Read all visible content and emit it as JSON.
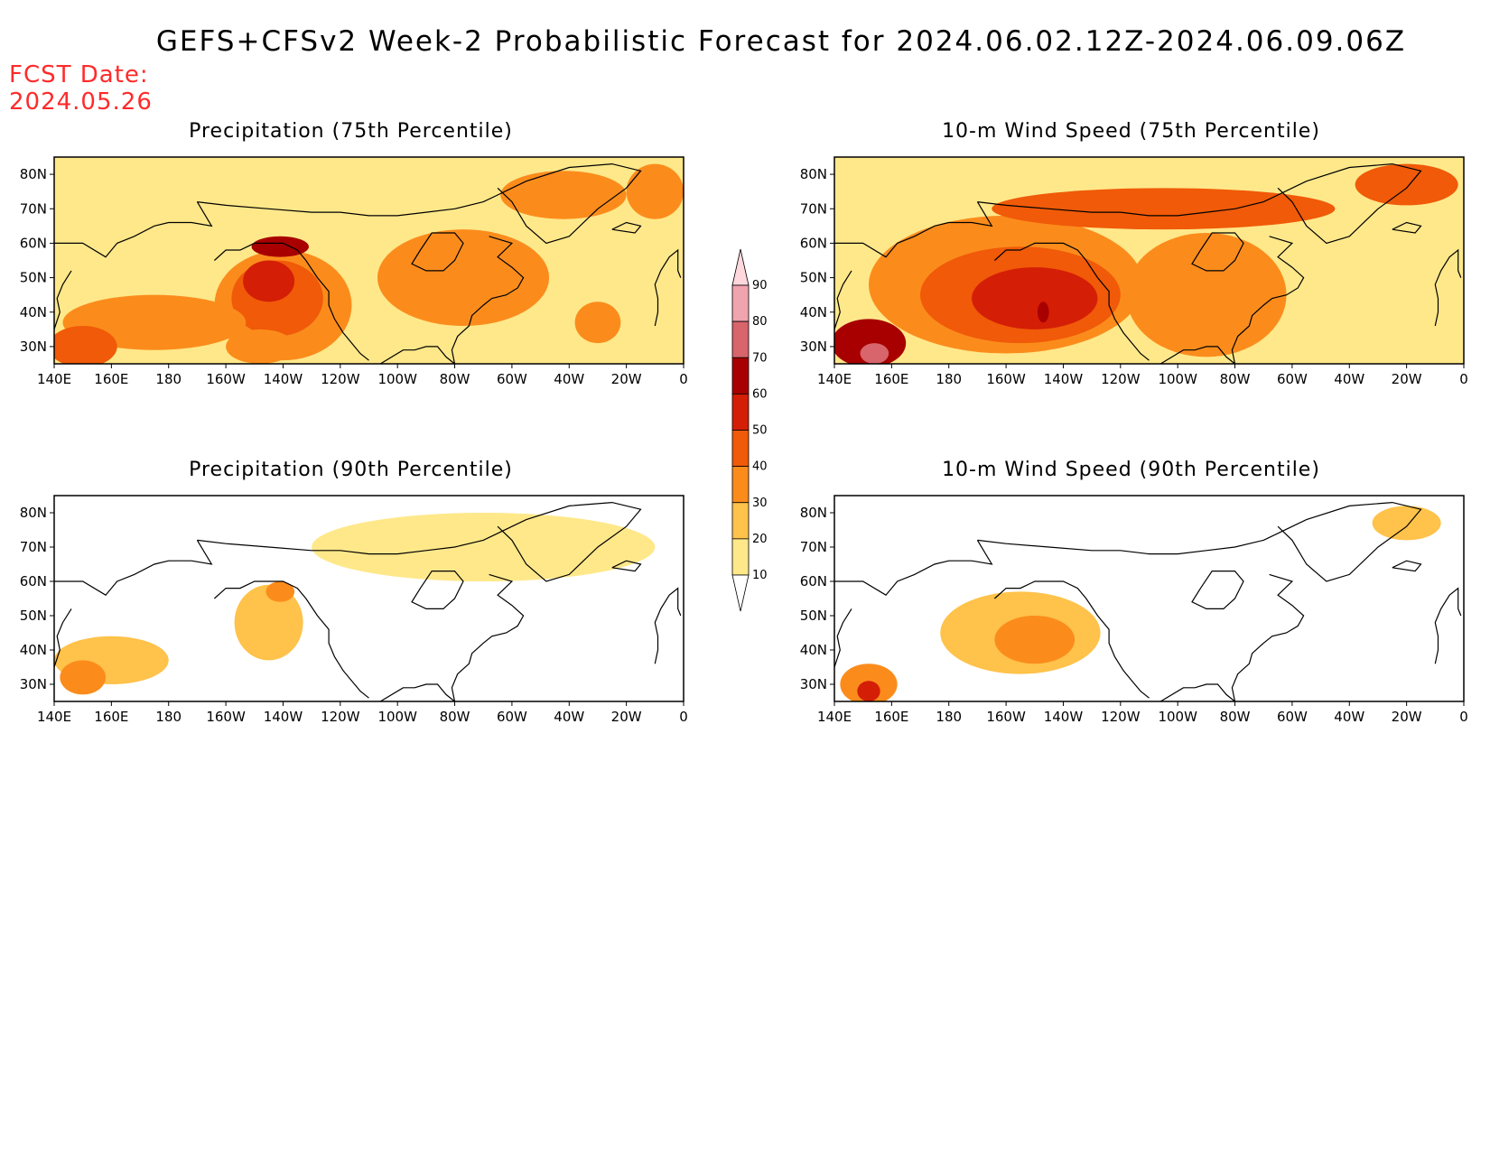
{
  "title": "GEFS+CFSv2 Week-2 Probabilistic Forecast for 2024.06.02.12Z-2024.06.09.06Z",
  "fcst_label": "FCST Date:",
  "fcst_date": "2024.05.26",
  "x_ticks": [
    "140E",
    "160E",
    "180",
    "160W",
    "140W",
    "120W",
    "100W",
    "80W",
    "60W",
    "40W",
    "20W",
    "0"
  ],
  "y_ticks": [
    "30N",
    "40N",
    "50N",
    "60N",
    "70N",
    "80N"
  ],
  "colorbar": {
    "levels": [
      10,
      20,
      30,
      40,
      50,
      60,
      70,
      80,
      90
    ],
    "labels": [
      "10",
      "20",
      "30",
      "40",
      "50",
      "60",
      "70",
      "80",
      "90"
    ],
    "colors": [
      "#fff8c2",
      "#ffe88a",
      "#ffc24a",
      "#fb8c1c",
      "#f05a08",
      "#d41e06",
      "#a80000",
      "#d8646c",
      "#f0a4ae",
      "#ffd8de"
    ]
  },
  "chart_data": [
    {
      "type": "heatmap",
      "title": "Precipitation (75th Percentile)",
      "x_range": [
        140,
        360
      ],
      "y_range": [
        25,
        85
      ],
      "x_ticks": [
        "140E",
        "160E",
        "180",
        "160W",
        "140W",
        "120W",
        "100W",
        "80W",
        "60W",
        "40W",
        "20W",
        "0"
      ],
      "y_ticks": [
        "30N",
        "40N",
        "50N",
        "60N",
        "70N",
        "80N"
      ],
      "regions": [
        {
          "lon": 220,
          "lat": 42,
          "rx": 24,
          "ry": 16,
          "value": 30
        },
        {
          "lon": 218,
          "lat": 44,
          "rx": 16,
          "ry": 11,
          "value": 40
        },
        {
          "lon": 215,
          "lat": 49,
          "rx": 9,
          "ry": 6,
          "value": 50
        },
        {
          "lon": 219,
          "lat": 59,
          "rx": 10,
          "ry": 3,
          "value": 60
        },
        {
          "lon": 175,
          "lat": 37,
          "rx": 32,
          "ry": 8,
          "value": 30
        },
        {
          "lon": 150,
          "lat": 30,
          "rx": 12,
          "ry": 6,
          "value": 40
        },
        {
          "lon": 283,
          "lat": 50,
          "rx": 30,
          "ry": 14,
          "value": 30
        },
        {
          "lon": 318,
          "lat": 74,
          "rx": 22,
          "ry": 7,
          "value": 30
        },
        {
          "lon": 350,
          "lat": 75,
          "rx": 10,
          "ry": 8,
          "value": 30
        },
        {
          "lon": 212,
          "lat": 30,
          "rx": 12,
          "ry": 5,
          "value": 30
        },
        {
          "lon": 330,
          "lat": 37,
          "rx": 8,
          "ry": 6,
          "value": 30
        }
      ]
    },
    {
      "type": "heatmap",
      "title": "10-m Wind Speed (75th Percentile)",
      "x_range": [
        140,
        360
      ],
      "y_range": [
        25,
        85
      ],
      "x_ticks": [
        "140E",
        "160E",
        "180",
        "160W",
        "140W",
        "120W",
        "100W",
        "80W",
        "60W",
        "40W",
        "20W",
        "0"
      ],
      "y_ticks": [
        "30N",
        "40N",
        "50N",
        "60N",
        "70N",
        "80N"
      ],
      "regions": [
        {
          "lon": 200,
          "lat": 48,
          "rx": 48,
          "ry": 20,
          "value": 30
        },
        {
          "lon": 205,
          "lat": 45,
          "rx": 35,
          "ry": 14,
          "value": 40
        },
        {
          "lon": 210,
          "lat": 44,
          "rx": 22,
          "ry": 9,
          "value": 50
        },
        {
          "lon": 213,
          "lat": 40,
          "rx": 2,
          "ry": 3,
          "value": 60
        },
        {
          "lon": 152,
          "lat": 31,
          "rx": 13,
          "ry": 7,
          "value": 60
        },
        {
          "lon": 154,
          "lat": 28,
          "rx": 5,
          "ry": 3,
          "value": 70
        },
        {
          "lon": 255,
          "lat": 70,
          "rx": 60,
          "ry": 6,
          "value": 40
        },
        {
          "lon": 340,
          "lat": 77,
          "rx": 18,
          "ry": 6,
          "value": 40
        },
        {
          "lon": 270,
          "lat": 45,
          "rx": 28,
          "ry": 18,
          "value": 30
        }
      ]
    },
    {
      "type": "heatmap",
      "title": "Precipitation (90th Percentile)",
      "x_range": [
        140,
        360
      ],
      "y_range": [
        25,
        85
      ],
      "x_ticks": [
        "140E",
        "160E",
        "180",
        "160W",
        "140W",
        "120W",
        "100W",
        "80W",
        "60W",
        "40W",
        "20W",
        "0"
      ],
      "y_ticks": [
        "30N",
        "40N",
        "50N",
        "60N",
        "70N",
        "80N"
      ],
      "regions": [
        {
          "lon": 215,
          "lat": 48,
          "rx": 12,
          "ry": 11,
          "value": 20
        },
        {
          "lon": 219,
          "lat": 57,
          "rx": 5,
          "ry": 3,
          "value": 30
        },
        {
          "lon": 160,
          "lat": 37,
          "rx": 20,
          "ry": 7,
          "value": 20
        },
        {
          "lon": 150,
          "lat": 32,
          "rx": 8,
          "ry": 5,
          "value": 30
        },
        {
          "lon": 290,
          "lat": 70,
          "rx": 60,
          "ry": 10,
          "value": 10
        }
      ]
    },
    {
      "type": "heatmap",
      "title": "10-m Wind Speed (90th Percentile)",
      "x_range": [
        140,
        360
      ],
      "y_range": [
        25,
        85
      ],
      "x_ticks": [
        "140E",
        "160E",
        "180",
        "160W",
        "140W",
        "120W",
        "100W",
        "80W",
        "60W",
        "40W",
        "20W",
        "0"
      ],
      "y_ticks": [
        "30N",
        "40N",
        "50N",
        "60N",
        "70N",
        "80N"
      ],
      "regions": [
        {
          "lon": 205,
          "lat": 45,
          "rx": 28,
          "ry": 12,
          "value": 20
        },
        {
          "lon": 210,
          "lat": 43,
          "rx": 14,
          "ry": 7,
          "value": 30
        },
        {
          "lon": 152,
          "lat": 30,
          "rx": 10,
          "ry": 6,
          "value": 30
        },
        {
          "lon": 152,
          "lat": 28,
          "rx": 4,
          "ry": 3,
          "value": 50
        },
        {
          "lon": 340,
          "lat": 77,
          "rx": 12,
          "ry": 5,
          "value": 20
        }
      ]
    }
  ]
}
